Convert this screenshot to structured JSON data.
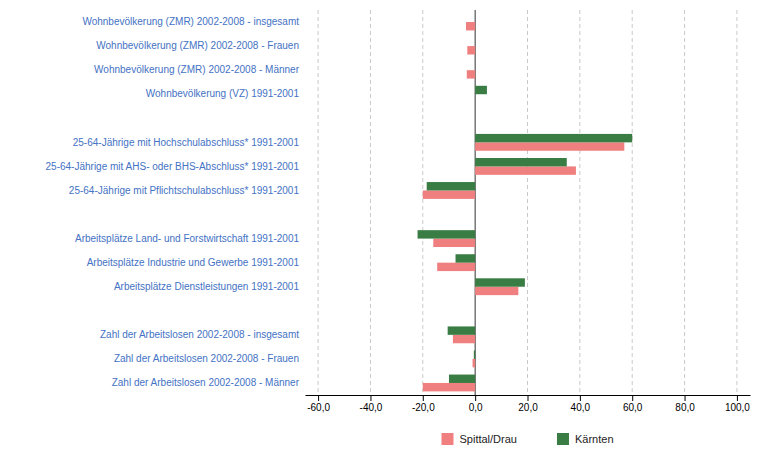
{
  "chart_data": {
    "type": "bar",
    "orientation": "horizontal",
    "categories": [
      "Wohnbevölkerung (ZMR) 2002-2008 - insgesamt",
      "Wohnbevölkerung (ZMR) 2002-2008 - Frauen",
      "Wohnbevölkerung (ZMR) 2002-2008 - Männer",
      "Wohnbevölkerung (VZ) 1991-2001",
      null,
      "25-64-Jährige mit Hochschulabschluss* 1991-2001",
      "25-64-Jährige mit AHS- oder BHS-Abschluss* 1991-2001",
      "25-64-Jährige mit Pflichtschulabschluss* 1991-2001",
      null,
      "Arbeitsplätze Land- und Forstwirtschaft 1991-2001",
      "Arbeitsplätze Industrie und Gewerbe 1991-2001",
      "Arbeitsplätze Dienstleistungen 1991-2001",
      null,
      "Zahl der Arbeitslosen 2002-2008 - insgesamt",
      "Zahl der Arbeitslosen 2002-2008 - Frauen",
      "Zahl der Arbeitslosen 2002-2008 - Männer"
    ],
    "series": [
      {
        "name": "Spittal/Drau",
        "color": "#F08080",
        "values": [
          -3.5,
          -3.0,
          -3.2,
          0.0,
          null,
          57.0,
          38.5,
          -20.0,
          null,
          -16.0,
          -14.5,
          16.5,
          null,
          -8.5,
          -1.0,
          -20.0
        ]
      },
      {
        "name": "Kärnten",
        "color": "#3A7D44",
        "values": [
          0.0,
          0.0,
          0.0,
          4.5,
          null,
          60.0,
          35.0,
          -18.5,
          null,
          -22.0,
          -7.5,
          19.0,
          null,
          -10.5,
          -0.5,
          -10.0
        ]
      }
    ],
    "xlim": [
      -65,
      105
    ],
    "xticks": [
      {
        "value": -60,
        "label": "-60,0"
      },
      {
        "value": -40,
        "label": "-40,0"
      },
      {
        "value": -20,
        "label": "-20,0"
      },
      {
        "value": 0,
        "label": "0,0"
      },
      {
        "value": 20,
        "label": "20,0"
      },
      {
        "value": 40,
        "label": "40,0"
      },
      {
        "value": 60,
        "label": "60,0"
      },
      {
        "value": 80,
        "label": "80,0"
      },
      {
        "value": 100,
        "label": "100,0"
      }
    ],
    "grid": true,
    "legend": "bottom"
  }
}
